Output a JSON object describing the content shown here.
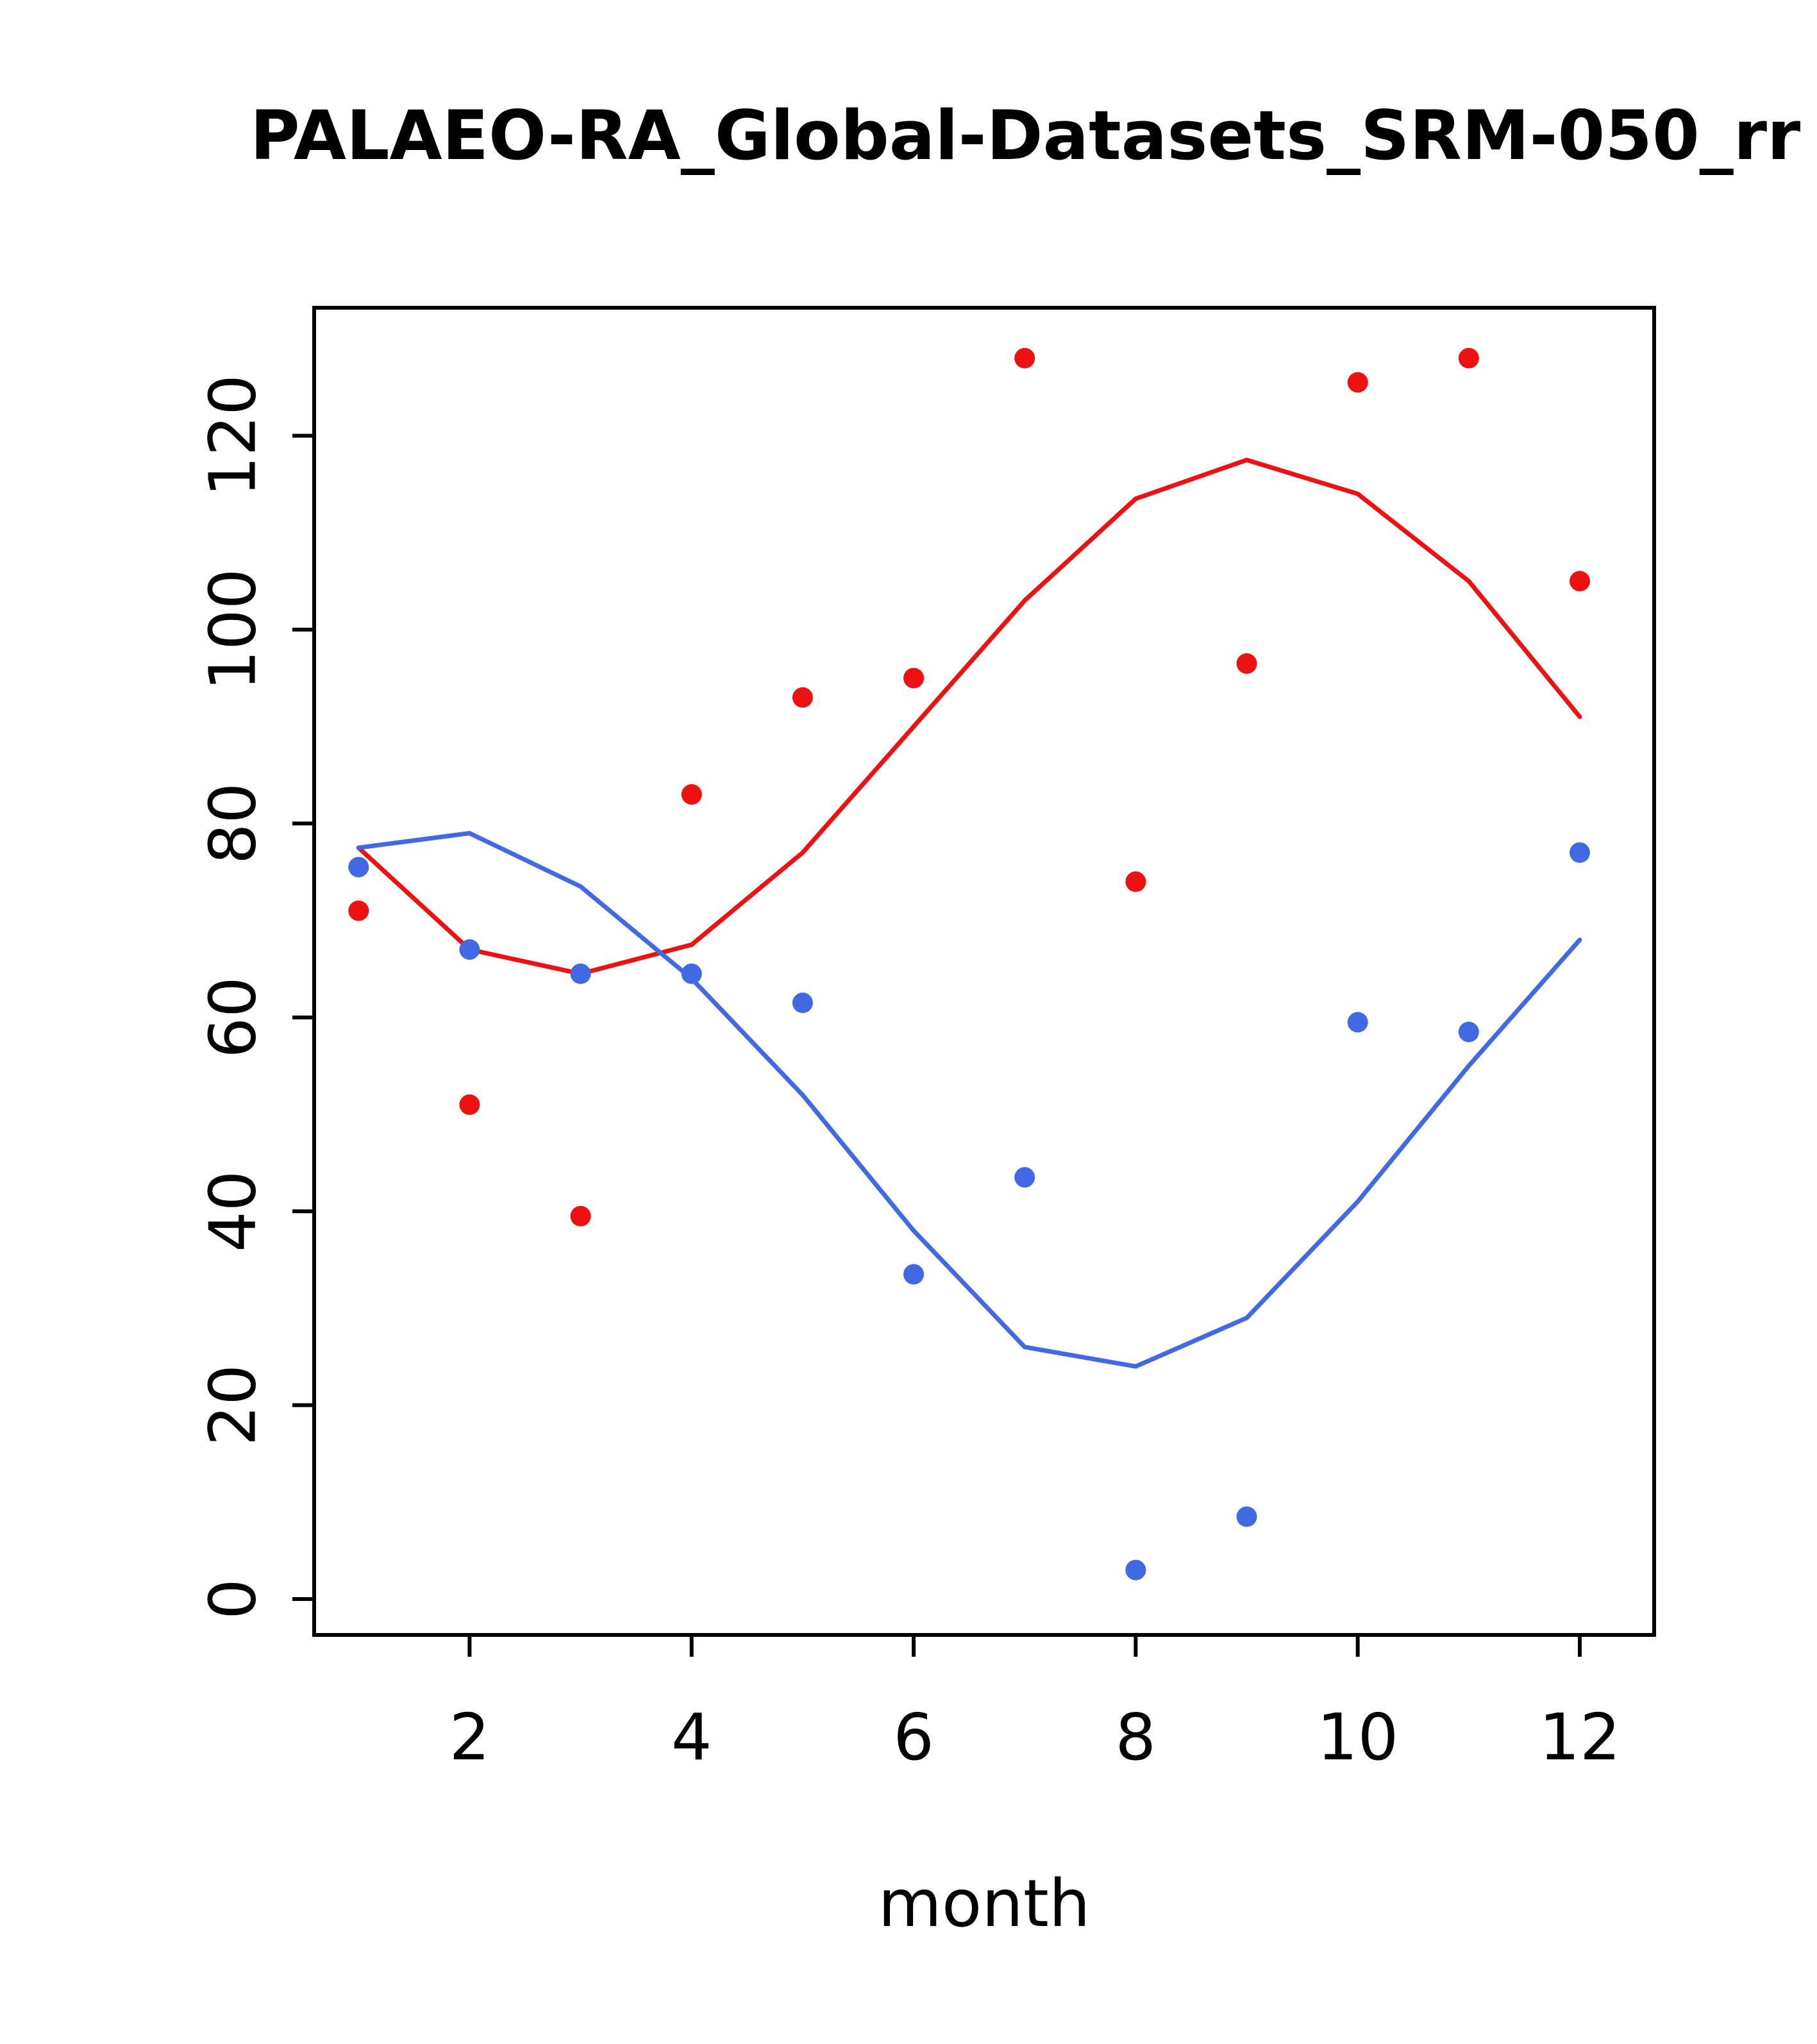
{
  "figure": {
    "background": "#ffffff"
  },
  "chart_data": {
    "type": "scatter",
    "title": "PALAEO-RA_Global-Datasets_SRM-050_rr",
    "xlabel": "month",
    "ylabel": "",
    "x": [
      1,
      2,
      3,
      4,
      5,
      6,
      7,
      8,
      9,
      10,
      11,
      12
    ],
    "series": [
      {
        "name": "red-points",
        "style": "points",
        "color": "#ee1111",
        "values": [
          71,
          51,
          39.5,
          83,
          93,
          95,
          128,
          74,
          96.5,
          125.5,
          128,
          105
        ]
      },
      {
        "name": "red-line",
        "style": "line",
        "color": "#ee1111",
        "values": [
          77.5,
          67,
          64.5,
          67.5,
          77,
          90,
          103,
          113.5,
          117.5,
          114,
          105,
          91
        ]
      },
      {
        "name": "blue-points",
        "style": "points",
        "color": "#4169e1",
        "values": [
          75.5,
          67,
          64.5,
          64.5,
          61.5,
          33.5,
          43.5,
          3,
          8.5,
          59.5,
          58.5,
          77
        ]
      },
      {
        "name": "blue-line",
        "style": "line",
        "color": "#4169e1",
        "values": [
          77.5,
          79,
          73.5,
          64,
          52,
          38,
          26,
          24,
          29,
          41,
          55,
          68
        ]
      }
    ],
    "xticks": [
      2,
      4,
      6,
      8,
      10,
      12
    ],
    "yticks": [
      0,
      20,
      40,
      60,
      80,
      100,
      120
    ],
    "xlim": [
      0.6,
      12.67
    ],
    "ylim": [
      -3.7,
      133.2
    ],
    "grid": false,
    "legend": null,
    "axis_color": "#000000"
  }
}
